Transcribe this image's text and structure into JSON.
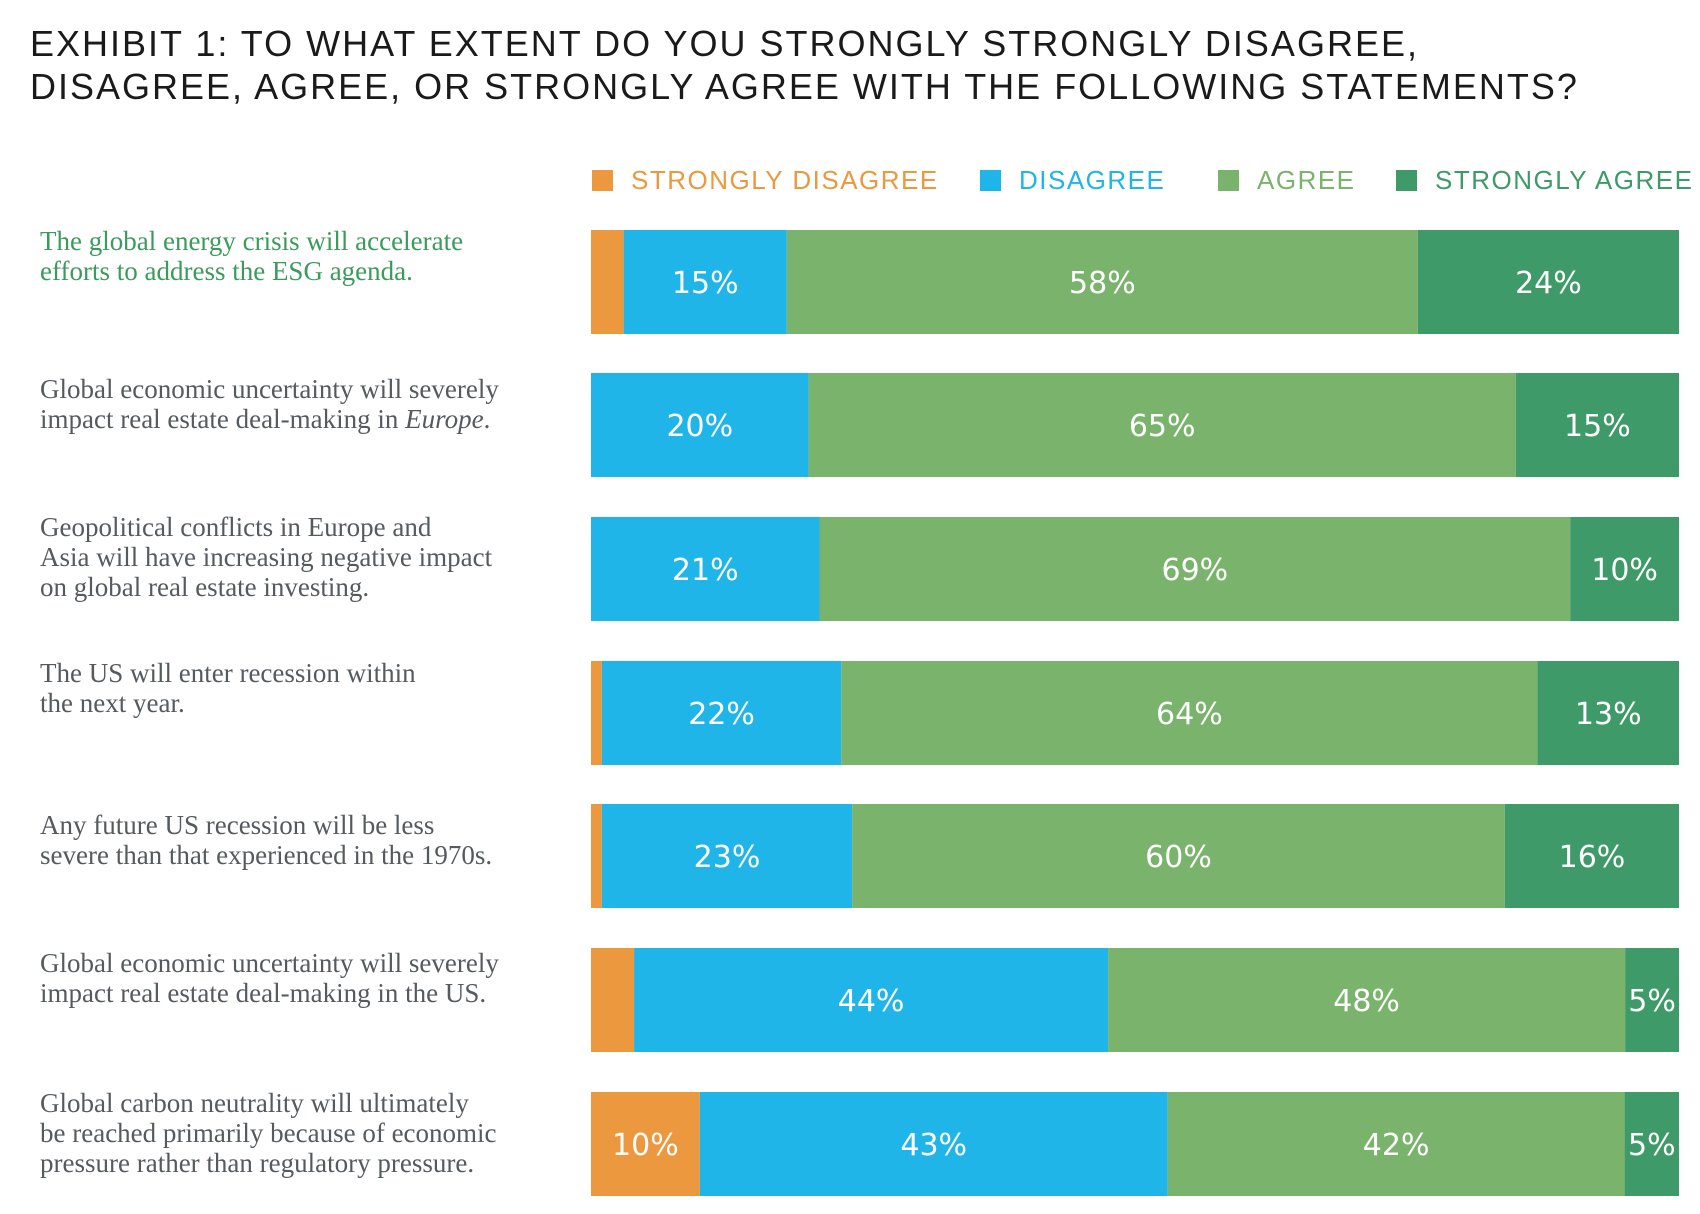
{
  "title_lines": [
    "EXHIBIT 1: TO WHAT EXTENT DO YOU STRONGLY STRONGLY DISAGREE,",
    "DISAGREE, AGREE, OR STRONGLY AGREE WITH THE FOLLOWING STATEMENTS?"
  ],
  "colors": {
    "strongly_disagree": "#ec983e",
    "disagree": "#1fb5e8",
    "agree": "#7ab36c",
    "strongly_agree": "#3e9a68",
    "highlight_text": "#3b9a5c",
    "body_text": "#555a5e"
  },
  "chart_data": {
    "type": "bar",
    "orientation": "horizontal",
    "stacked": true,
    "legend": {
      "placement": "top",
      "entries": [
        "STRONGLY DISAGREE",
        "DISAGREE",
        "AGREE",
        "STRONGLY AGREE"
      ]
    },
    "categories": [
      "The global energy crisis will accelerate efforts to address the ESG agenda.",
      "Global economic uncertainty will severely impact real estate deal-making in Europe.",
      "Geopolitical conflicts in Europe and Asia will have increasing negative impact on global real estate investing.",
      "The US will enter recession within the next year.",
      "Any future US recession will be less severe than that experienced in the 1970s.",
      "Global economic uncertainty will severely impact real estate deal-making in the US.",
      "Global carbon neutrality will ultimately be reached primarily because of economic pressure rather than regulatory pressure."
    ],
    "series": [
      {
        "name": "STRONGLY DISAGREE",
        "values": [
          3,
          0,
          0,
          1,
          1,
          4,
          10
        ],
        "labels": [
          "",
          "",
          "",
          "",
          "",
          "",
          "10%"
        ]
      },
      {
        "name": "DISAGREE",
        "values": [
          15,
          20,
          21,
          22,
          23,
          44,
          43
        ],
        "labels": [
          "15%",
          "20%",
          "21%",
          "22%",
          "23%",
          "44%",
          "43%"
        ]
      },
      {
        "name": "AGREE",
        "values": [
          58,
          65,
          69,
          64,
          60,
          48,
          42
        ],
        "labels": [
          "58%",
          "65%",
          "69%",
          "64%",
          "60%",
          "48%",
          "42%"
        ]
      },
      {
        "name": "STRONGLY AGREE",
        "values": [
          24,
          15,
          10,
          13,
          16,
          5,
          5
        ],
        "labels": [
          "24%",
          "15%",
          "10%",
          "13%",
          "16%",
          "5%",
          "5%"
        ]
      }
    ],
    "xlim": [
      0,
      100
    ],
    "grid": false
  },
  "statements": [
    {
      "lines": [
        "The global energy crisis will accelerate",
        "efforts to address the ESG agenda."
      ],
      "highlight": true
    },
    {
      "lines": [
        "Global economic uncertainty will severely",
        "impact real estate deal-making in "
      ],
      "italic_tail": "Europe",
      "tail_suffix": ".",
      "highlight": false
    },
    {
      "lines": [
        "Geopolitical conflicts in Europe and",
        "Asia will have increasing negative impact",
        "on global real estate investing."
      ],
      "highlight": false
    },
    {
      "lines": [
        "The US will enter recession within",
        "the next year."
      ],
      "highlight": false
    },
    {
      "lines": [
        "Any future US recession will be less",
        "severe than that experienced in the 1970s."
      ],
      "highlight": false
    },
    {
      "lines": [
        "Global economic uncertainty will severely",
        "impact real estate deal-making in the US."
      ],
      "highlight": false
    },
    {
      "lines": [
        "Global carbon neutrality will ultimately",
        "be reached primarily because of economic",
        "pressure rather than regulatory pressure."
      ],
      "highlight": false
    }
  ]
}
